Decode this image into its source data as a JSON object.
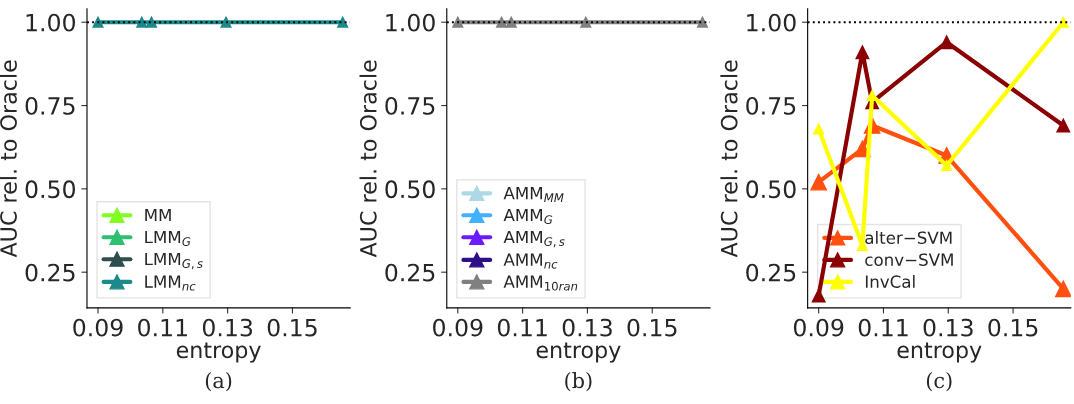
{
  "chart_data": [
    {
      "type": "line",
      "xlabel": "entropy",
      "ylabel": "AUC rel. to Oracle",
      "x": [
        0.09,
        0.1035,
        0.1065,
        0.1295,
        0.1655
      ],
      "xlim": [
        0.0866,
        0.1678
      ],
      "xticks": [
        0.09,
        0.11,
        0.13,
        0.15
      ],
      "ylim": [
        0.143,
        1.04
      ],
      "yticks": [
        {
          "value": 0.25,
          "label": "0.25"
        },
        {
          "value": 0.5,
          "label": "0.50"
        },
        {
          "value": 0.75,
          "label": "0.75"
        },
        {
          "value": 1.0,
          "label": "1.00"
        }
      ],
      "marker": "triangle",
      "line_style": "solid",
      "grid": false,
      "legend": "bottom left",
      "series": [
        {
          "name": "MM",
          "color": "#80ff20",
          "values": [
            null,
            null,
            null,
            null,
            null
          ]
        },
        {
          "name": "LMM$_{G}$",
          "color": "#2fbf71",
          "values": [
            null,
            null,
            null,
            null,
            null
          ]
        },
        {
          "name": "LMM$_{G,s}$",
          "color": "#2f4f4f",
          "values": [
            null,
            null,
            null,
            null,
            null
          ]
        },
        {
          "name": "LMM$_{nc}$",
          "color": "#1b8a8a",
          "values": [
            1.0,
            1.0,
            1.0,
            1.0,
            1.0
          ]
        }
      ],
      "ref_lines": [
        {
          "axis": "y",
          "value": 1.0,
          "label": null,
          "color": "#000000",
          "line_style": "dotted"
        }
      ],
      "annotations": [
        "(a)"
      ]
    },
    {
      "type": "line",
      "xlabel": "entropy",
      "ylabel": "AUC rel. to Oracle",
      "x": [
        0.09,
        0.1035,
        0.1065,
        0.1295,
        0.1655
      ],
      "xlim": [
        0.0866,
        0.1678
      ],
      "xticks": [
        0.09,
        0.11,
        0.13,
        0.15
      ],
      "ylim": [
        0.143,
        1.04
      ],
      "yticks": [
        {
          "value": 0.25,
          "label": "0.25"
        },
        {
          "value": 0.5,
          "label": "0.50"
        },
        {
          "value": 0.75,
          "label": "0.75"
        },
        {
          "value": 1.0,
          "label": "1.00"
        }
      ],
      "marker": "triangle",
      "line_style": "solid",
      "grid": false,
      "legend": "bottom left",
      "series": [
        {
          "name": "AMM$_{MM}$",
          "color": "#add8e6",
          "values": [
            null,
            null,
            null,
            null,
            null
          ]
        },
        {
          "name": "AMM$_{G}$",
          "color": "#40b0ff",
          "values": [
            null,
            null,
            null,
            null,
            null
          ]
        },
        {
          "name": "AMM$_{G,s}$",
          "color": "#6a1bff",
          "values": [
            null,
            null,
            null,
            null,
            null
          ]
        },
        {
          "name": "AMM$_{nc}$",
          "color": "#2e0f8a",
          "values": [
            null,
            null,
            null,
            null,
            null
          ]
        },
        {
          "name": "AMM$_{10ran}$",
          "color": "#808080",
          "values": [
            1.0,
            1.0,
            1.0,
            1.0,
            1.0
          ]
        }
      ],
      "ref_lines": [
        {
          "axis": "y",
          "value": 1.0,
          "label": null,
          "color": "#000000",
          "line_style": "dotted"
        }
      ],
      "annotations": [
        "(b)"
      ]
    },
    {
      "type": "line",
      "xlabel": "entropy",
      "ylabel": "AUC rel. to Oracle",
      "x": [
        0.09,
        0.1035,
        0.1065,
        0.1295,
        0.1655
      ],
      "xlim": [
        0.0866,
        0.1678
      ],
      "xticks": [
        0.09,
        0.11,
        0.13,
        0.15
      ],
      "ylim": [
        0.143,
        1.04
      ],
      "yticks": [
        {
          "value": 0.25,
          "label": "0.25"
        },
        {
          "value": 0.5,
          "label": "0.50"
        },
        {
          "value": 0.75,
          "label": "0.75"
        },
        {
          "value": 1.0,
          "label": "1.00"
        }
      ],
      "marker": "triangle",
      "line_style": "solid",
      "grid": false,
      "legend": "bottom left",
      "series": [
        {
          "name": "alter−SVM",
          "color": "#ff5010",
          "values": [
            0.52,
            0.62,
            0.69,
            0.6,
            0.2
          ]
        },
        {
          "name": "conv−SVM",
          "color": "#8b0000",
          "values": [
            0.18,
            0.91,
            0.76,
            0.94,
            0.69
          ]
        },
        {
          "name": "InvCal",
          "color": "#ffff00",
          "values": [
            0.68,
            0.33,
            0.78,
            0.57,
            1.0
          ]
        }
      ],
      "ref_lines": [
        {
          "axis": "y",
          "value": 1.0,
          "label": null,
          "color": "#000000",
          "line_style": "dotted"
        }
      ],
      "annotations": [
        "(c)"
      ]
    }
  ]
}
